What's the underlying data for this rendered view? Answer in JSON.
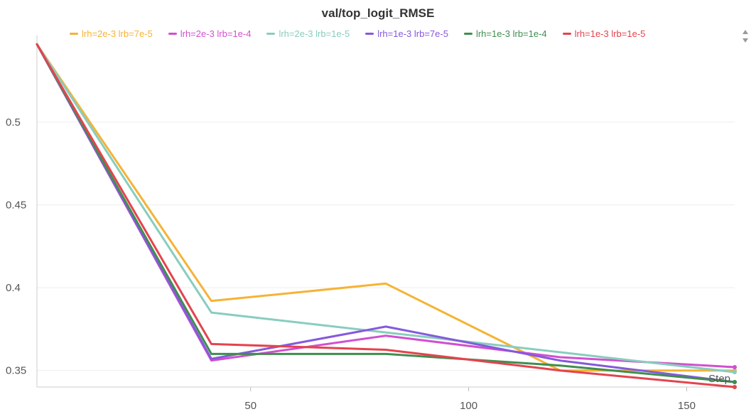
{
  "chart_data": {
    "type": "line",
    "title": "val/top_logit_RMSE",
    "xlabel": "Step",
    "ylabel": "",
    "xlim": [
      1,
      161
    ],
    "ylim": [
      0.34,
      0.548
    ],
    "x_ticks": [
      50,
      100,
      150
    ],
    "y_ticks": [
      0.35,
      0.4,
      0.45,
      0.5
    ],
    "y_tick_labels": [
      "0.35",
      "0.4",
      "0.45",
      "0.5"
    ],
    "x_tick_labels": [
      "50",
      "100",
      "150"
    ],
    "grid": true,
    "legend_position": "top",
    "series": [
      {
        "name": "lrh=2e-3 lrb=7e-5",
        "color": "#f5b335",
        "x": [
          1,
          41,
          81,
          121,
          161
        ],
        "y": [
          0.547,
          0.392,
          0.4025,
          0.35,
          0.35
        ]
      },
      {
        "name": "lrh=2e-3 lrb=1e-4",
        "color": "#d24fd0",
        "x": [
          1,
          41,
          81,
          121,
          161
        ],
        "y": [
          0.547,
          0.356,
          0.371,
          0.358,
          0.352
        ]
      },
      {
        "name": "lrh=2e-3 lrb=1e-5",
        "color": "#88cdbf",
        "x": [
          1,
          41,
          81,
          121,
          161
        ],
        "y": [
          0.547,
          0.385,
          0.373,
          0.361,
          0.349
        ]
      },
      {
        "name": "lrh=1e-3 lrb=7e-5",
        "color": "#8559dc",
        "x": [
          1,
          41,
          81,
          121,
          161
        ],
        "y": [
          0.547,
          0.357,
          0.3765,
          0.356,
          0.343
        ]
      },
      {
        "name": "lrh=1e-3 lrb=1e-4",
        "color": "#3f8e4f",
        "x": [
          1,
          41,
          81,
          121,
          161
        ],
        "y": [
          0.547,
          0.36,
          0.36,
          0.353,
          0.343
        ]
      },
      {
        "name": "lrh=1e-3 lrb=1e-5",
        "color": "#e4434e",
        "x": [
          1,
          41,
          81,
          121,
          161
        ],
        "y": [
          0.547,
          0.366,
          0.3625,
          0.35,
          0.34
        ]
      }
    ]
  }
}
